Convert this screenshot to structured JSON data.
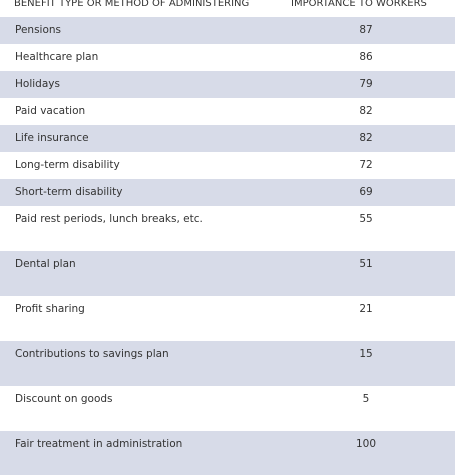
{
  "table": {
    "headers": {
      "benefit": "BENEFIT TYPE OR METHOD OF ADMINISTERING",
      "importance": "IMPORTANCE TO WORKERS"
    },
    "rows": [
      {
        "label": "Pensions",
        "value": "87"
      },
      {
        "label": "Healthcare plan",
        "value": "86"
      },
      {
        "label": "Holidays",
        "value": "79"
      },
      {
        "label": "Paid vacation",
        "value": "82"
      },
      {
        "label": "Life insurance",
        "value": "82"
      },
      {
        "label": "Long-term disability",
        "value": "72"
      },
      {
        "label": "Short-term disability",
        "value": "69"
      },
      {
        "label": "Paid rest periods, lunch breaks, etc.",
        "value": "55"
      },
      {
        "label": "Dental plan",
        "value": "51"
      },
      {
        "label": "Profit sharing",
        "value": "21"
      },
      {
        "label": "Contributions to savings plan",
        "value": "15"
      },
      {
        "label": "Discount on goods",
        "value": "5"
      },
      {
        "label": "Fair treatment in administration",
        "value": "100"
      }
    ]
  }
}
